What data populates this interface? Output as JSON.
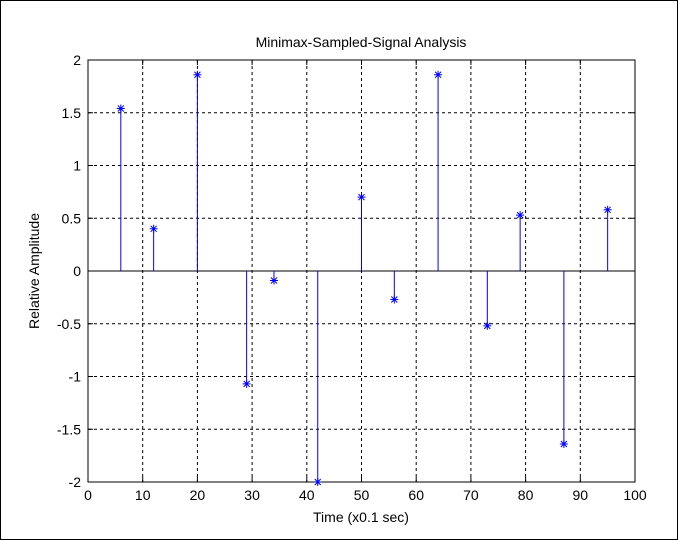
{
  "chart_data": {
    "type": "stem",
    "title": "Minimax-Sampled-Signal Analysis",
    "xlabel": "Time (x0.1 sec)",
    "ylabel": "Relative Amplitude",
    "x": [
      6,
      12,
      20,
      29,
      34,
      42,
      50,
      56,
      64,
      73,
      79,
      87,
      95
    ],
    "values": [
      1.54,
      0.4,
      1.86,
      -1.07,
      -0.09,
      -2.0,
      0.7,
      -0.27,
      1.86,
      -0.52,
      0.53,
      -1.64,
      0.58
    ],
    "color": "#0000ff",
    "xlim": [
      0,
      100
    ],
    "xticks": [
      0,
      10,
      20,
      30,
      40,
      50,
      60,
      70,
      80,
      90,
      100
    ],
    "ylim": [
      -2,
      2
    ],
    "yticks": [
      -2,
      -1.5,
      -1,
      -0.5,
      0,
      0.5,
      1,
      1.5,
      2
    ],
    "grid": true
  }
}
